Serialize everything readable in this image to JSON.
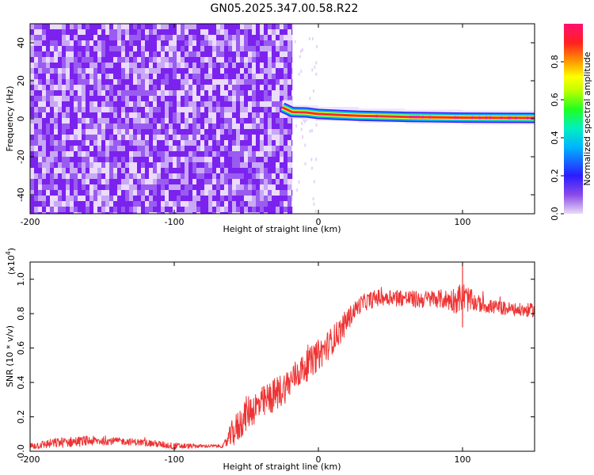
{
  "title": "GN05.2025.347.00.58.R22",
  "chart_data": [
    {
      "type": "heatmap",
      "name": "spectrogram",
      "xlabel": "Height of straight line (km)",
      "ylabel": "Frequency (Hz)",
      "xlim": [
        -200,
        150
      ],
      "ylim": [
        -50,
        50
      ],
      "x_ticks": [
        -200,
        -100,
        0,
        100
      ],
      "x_tick_labels": [
        "-200",
        "-100",
        "0",
        "100"
      ],
      "y_ticks": [
        -40,
        -20,
        0,
        20,
        40
      ],
      "y_tick_labels": [
        "-40",
        "-20",
        "0",
        "20",
        "40"
      ],
      "noise_region": {
        "x_start": -200,
        "x_end": -18,
        "typical_amplitude": 0.1
      },
      "signal_ridge": [
        {
          "x": -25,
          "freq": 6
        },
        {
          "x": -18,
          "freq": 3.5
        },
        {
          "x": -8,
          "freq": 3.3
        },
        {
          "x": 0,
          "freq": 2.5
        },
        {
          "x": 28,
          "freq": 1.6
        },
        {
          "x": 60,
          "freq": 1.0
        },
        {
          "x": 100,
          "freq": 0.6
        },
        {
          "x": 150,
          "freq": 0.4
        }
      ],
      "colorbar": {
        "label": "Normalized spectral amplitude",
        "range": [
          0.0,
          1.0
        ],
        "ticks": [
          0.0,
          0.2,
          0.4,
          0.6,
          0.8
        ],
        "tick_labels": [
          "0.0",
          "0.2",
          "0.4",
          "0.6",
          "0.8"
        ]
      }
    },
    {
      "type": "line",
      "name": "snr",
      "xlabel": "Height of straight line (km)",
      "ylabel": "SNR (10 * v/v)",
      "scale_label": "(x10",
      "scale_exp": "4",
      "scale_close": ")",
      "xlim": [
        -200,
        150
      ],
      "ylim": [
        0,
        1.1
      ],
      "x_ticks": [
        -200,
        -100,
        0,
        100
      ],
      "x_tick_labels": [
        "-200",
        "-100",
        "0",
        "100"
      ],
      "y_ticks": [
        0,
        0.2,
        0.4,
        0.6,
        0.8,
        1.0
      ],
      "y_tick_labels": [
        "0.0",
        "0.2",
        "0.4",
        "0.6",
        "0.8",
        "1.0"
      ],
      "color": "#ee3333",
      "series": [
        {
          "name": "SNR",
          "x": [
            -200,
            -180,
            -160,
            -140,
            -120,
            -100,
            -80,
            -66,
            -60,
            -55,
            -50,
            -45,
            -40,
            -35,
            -30,
            -25,
            -20,
            -15,
            -10,
            -5,
            0,
            5,
            10,
            15,
            20,
            25,
            30,
            40,
            50,
            60,
            70,
            80,
            90,
            95,
            100,
            110,
            120,
            130,
            140,
            150
          ],
          "y": [
            0.03,
            0.05,
            0.06,
            0.06,
            0.05,
            0.03,
            0.03,
            0.03,
            0.1,
            0.15,
            0.22,
            0.25,
            0.27,
            0.3,
            0.33,
            0.36,
            0.4,
            0.45,
            0.48,
            0.52,
            0.56,
            0.6,
            0.65,
            0.7,
            0.76,
            0.82,
            0.86,
            0.89,
            0.9,
            0.89,
            0.88,
            0.89,
            0.88,
            0.88,
            0.9,
            0.86,
            0.84,
            0.83,
            0.82,
            0.82
          ],
          "noise_amplitude": [
            0.02,
            0.03,
            0.03,
            0.02,
            0.02,
            0.02,
            0.01,
            0.01,
            0.08,
            0.1,
            0.1,
            0.1,
            0.1,
            0.1,
            0.1,
            0.1,
            0.09,
            0.09,
            0.09,
            0.09,
            0.09,
            0.09,
            0.08,
            0.08,
            0.07,
            0.05,
            0.05,
            0.05,
            0.05,
            0.05,
            0.05,
            0.05,
            0.06,
            0.08,
            0.09,
            0.05,
            0.04,
            0.04,
            0.04,
            0.04
          ]
        }
      ]
    }
  ]
}
